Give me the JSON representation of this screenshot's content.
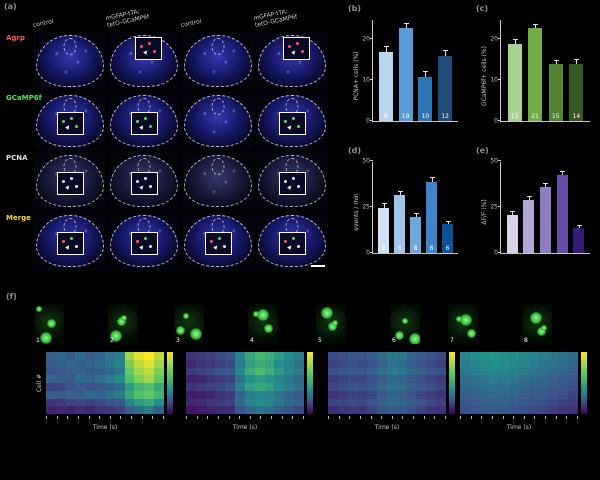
{
  "figure": {
    "background": "#000000"
  },
  "panels": {
    "a": {
      "label": "(a)",
      "col_headers": [
        "control",
        "mGFAP-tTA;\ntetO-GCaMP6f",
        "control",
        "mGFAP-tTA;\ntetO-GCaMP6f"
      ],
      "rows": [
        {
          "label": "Agrp",
          "color": "#ff5a5a"
        },
        {
          "label": "GCaMP6f",
          "color": "#58e058"
        },
        {
          "label": "PCNA",
          "color": "#e0e0e0"
        },
        {
          "label": "Merge",
          "color": "#ffd54a"
        }
      ]
    },
    "b": {
      "label": "(b)",
      "ylabel": "PCNA+ cells (%)",
      "ymax": 25,
      "yticks": [
        0,
        10,
        20
      ],
      "values": [
        17,
        23,
        11,
        16
      ],
      "errors": [
        1.5,
        1.2,
        1.4,
        1.6
      ],
      "ns": [
        8,
        19,
        10,
        12
      ],
      "colors": [
        "#b9d7ec",
        "#5b9bd5",
        "#2e75b6",
        "#1f4e79"
      ]
    },
    "c": {
      "label": "(c)",
      "ylabel": "GCaMP6f+ cells (%)",
      "ymax": 25,
      "yticks": [
        0,
        10,
        20
      ],
      "values": [
        19,
        23,
        14,
        14
      ],
      "errors": [
        1.3,
        1.1,
        1.2,
        1.4
      ],
      "ns": [
        15,
        21,
        15,
        14
      ],
      "hatch": true,
      "colors": [
        "#a9d18e",
        "#70ad47",
        "#548235",
        "#375623"
      ]
    },
    "d": {
      "label": "(d)",
      "ylabel": "events / min",
      "ymax": 50,
      "yticks": [
        0,
        25,
        50
      ],
      "values": [
        25,
        32,
        20,
        39,
        16
      ],
      "errors": [
        2.4,
        2.2,
        2.0,
        2.5,
        1.8
      ],
      "ns": [
        8,
        6,
        8,
        6,
        6
      ],
      "colors": [
        "#cfe2f3",
        "#9fc5e8",
        "#6fa8dc",
        "#3d85c6",
        "#0b5394"
      ]
    },
    "e": {
      "label": "(e)",
      "ylabel": "ΔF/F (%)",
      "ymax": 50,
      "yticks": [
        0,
        25,
        50
      ],
      "values": [
        21,
        29,
        36,
        43,
        14
      ],
      "errors": [
        2.0,
        2.1,
        2.3,
        2.2,
        1.6
      ],
      "ns": [],
      "colors": [
        "#d9d2e9",
        "#b4a7d6",
        "#8e7cc3",
        "#674ea7",
        "#351c75"
      ]
    },
    "f": {
      "label": "(f)",
      "ylabel": "Cell #",
      "xlabel": "Time (s)",
      "cell_numbers": [
        "1",
        "2",
        "3",
        "4",
        "5",
        "6",
        "7",
        "8"
      ],
      "heatmaps": [
        [
          [
            0.3,
            0.32,
            0.28,
            0.35,
            0.3,
            0.33,
            0.38,
            0.42,
            0.85,
            0.95,
            1.0,
            0.9
          ],
          [
            0.28,
            0.3,
            0.33,
            0.3,
            0.32,
            0.35,
            0.4,
            0.45,
            0.8,
            0.9,
            0.95,
            0.85
          ],
          [
            0.25,
            0.28,
            0.3,
            0.32,
            0.28,
            0.3,
            0.35,
            0.4,
            0.75,
            0.85,
            0.9,
            0.8
          ],
          [
            0.33,
            0.3,
            0.28,
            0.35,
            0.33,
            0.36,
            0.42,
            0.48,
            0.7,
            0.8,
            0.85,
            0.75
          ],
          [
            0.2,
            0.22,
            0.25,
            0.28,
            0.25,
            0.28,
            0.3,
            0.35,
            0.55,
            0.65,
            0.7,
            0.6
          ],
          [
            0.3,
            0.28,
            0.32,
            0.3,
            0.35,
            0.32,
            0.38,
            0.42,
            0.6,
            0.7,
            0.75,
            0.65
          ],
          [
            0.15,
            0.18,
            0.2,
            0.22,
            0.2,
            0.22,
            0.25,
            0.28,
            0.45,
            0.55,
            0.6,
            0.5
          ],
          [
            0.1,
            0.12,
            0.1,
            0.14,
            0.12,
            0.15,
            0.18,
            0.2,
            0.3,
            0.35,
            0.4,
            0.3
          ]
        ],
        [
          [
            0.15,
            0.18,
            0.2,
            0.22,
            0.25,
            0.45,
            0.6,
            0.65,
            0.62,
            0.55,
            0.48,
            0.42
          ],
          [
            0.12,
            0.15,
            0.18,
            0.2,
            0.22,
            0.42,
            0.56,
            0.62,
            0.58,
            0.5,
            0.44,
            0.38
          ],
          [
            0.18,
            0.2,
            0.22,
            0.25,
            0.28,
            0.48,
            0.62,
            0.68,
            0.62,
            0.54,
            0.46,
            0.4
          ],
          [
            0.1,
            0.12,
            0.15,
            0.18,
            0.2,
            0.38,
            0.5,
            0.55,
            0.52,
            0.46,
            0.4,
            0.34
          ],
          [
            0.15,
            0.18,
            0.2,
            0.22,
            0.25,
            0.44,
            0.56,
            0.6,
            0.56,
            0.48,
            0.42,
            0.36
          ],
          [
            0.08,
            0.1,
            0.12,
            0.15,
            0.18,
            0.32,
            0.42,
            0.46,
            0.44,
            0.38,
            0.32,
            0.28
          ],
          [
            0.12,
            0.14,
            0.16,
            0.18,
            0.2,
            0.34,
            0.44,
            0.48,
            0.46,
            0.4,
            0.34,
            0.3
          ],
          [
            0.06,
            0.08,
            0.1,
            0.12,
            0.14,
            0.26,
            0.34,
            0.38,
            0.35,
            0.3,
            0.26,
            0.22
          ]
        ],
        [
          [
            0.22,
            0.24,
            0.26,
            0.25,
            0.28,
            0.35,
            0.4,
            0.38,
            0.32,
            0.28,
            0.25,
            0.22
          ],
          [
            0.2,
            0.22,
            0.24,
            0.23,
            0.26,
            0.32,
            0.38,
            0.36,
            0.3,
            0.26,
            0.23,
            0.2
          ],
          [
            0.24,
            0.26,
            0.28,
            0.27,
            0.3,
            0.38,
            0.42,
            0.4,
            0.34,
            0.3,
            0.26,
            0.24
          ],
          [
            0.18,
            0.2,
            0.22,
            0.21,
            0.24,
            0.3,
            0.34,
            0.32,
            0.28,
            0.24,
            0.21,
            0.18
          ],
          [
            0.22,
            0.23,
            0.25,
            0.24,
            0.27,
            0.34,
            0.38,
            0.36,
            0.31,
            0.27,
            0.24,
            0.21
          ],
          [
            0.16,
            0.18,
            0.2,
            0.19,
            0.22,
            0.28,
            0.32,
            0.3,
            0.26,
            0.22,
            0.19,
            0.16
          ],
          [
            0.2,
            0.21,
            0.23,
            0.22,
            0.25,
            0.31,
            0.35,
            0.33,
            0.29,
            0.25,
            0.22,
            0.19
          ],
          [
            0.14,
            0.16,
            0.18,
            0.17,
            0.2,
            0.25,
            0.28,
            0.27,
            0.23,
            0.2,
            0.17,
            0.14
          ]
        ],
        [
          [
            0.45,
            0.48,
            0.5,
            0.52,
            0.5,
            0.48,
            0.46,
            0.44,
            0.42,
            0.4,
            0.38,
            0.35
          ],
          [
            0.42,
            0.45,
            0.48,
            0.5,
            0.48,
            0.46,
            0.44,
            0.42,
            0.4,
            0.38,
            0.36,
            0.33
          ],
          [
            0.4,
            0.42,
            0.45,
            0.46,
            0.45,
            0.43,
            0.41,
            0.39,
            0.37,
            0.35,
            0.33,
            0.3
          ],
          [
            0.36,
            0.38,
            0.4,
            0.42,
            0.41,
            0.39,
            0.37,
            0.35,
            0.33,
            0.31,
            0.29,
            0.27
          ],
          [
            0.33,
            0.35,
            0.37,
            0.38,
            0.37,
            0.35,
            0.33,
            0.31,
            0.3,
            0.28,
            0.26,
            0.24
          ],
          [
            0.3,
            0.32,
            0.34,
            0.35,
            0.34,
            0.32,
            0.3,
            0.28,
            0.27,
            0.25,
            0.23,
            0.21
          ],
          [
            0.27,
            0.29,
            0.31,
            0.32,
            0.31,
            0.29,
            0.27,
            0.25,
            0.24,
            0.22,
            0.2,
            0.18
          ],
          [
            0.24,
            0.26,
            0.28,
            0.29,
            0.28,
            0.26,
            0.24,
            0.22,
            0.21,
            0.19,
            0.17,
            0.15
          ]
        ]
      ]
    }
  }
}
